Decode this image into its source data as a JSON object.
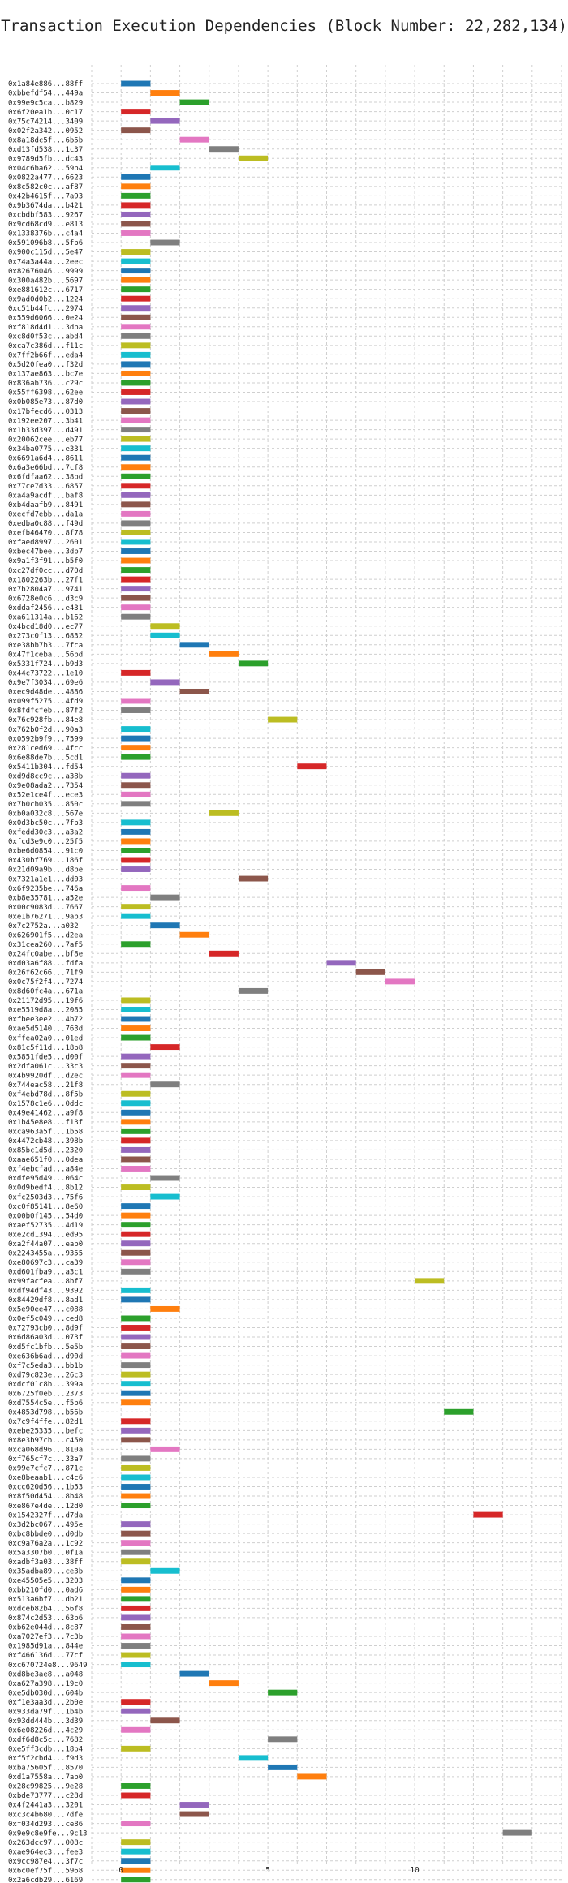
{
  "chart_data": {
    "type": "gantt",
    "title": "Transaction Execution Dependencies (Block Number: 22,282,134)",
    "xlabel": "",
    "ylabel": "",
    "xlim": [
      -1,
      15
    ],
    "xticks": [
      0,
      5,
      10
    ],
    "grid": true,
    "bar_height": 0.6,
    "palette": [
      "#1f77b4",
      "#ff7f0e",
      "#2ca02c",
      "#d62728",
      "#9467bd",
      "#8c564b",
      "#e377c2",
      "#7f7f7f",
      "#bcbd22",
      "#17becf"
    ],
    "transactions": [
      {
        "label": "0x1a84e886...88ff",
        "start": 0,
        "end": 1
      },
      {
        "label": "0xbbefdf54...449a",
        "start": 1,
        "end": 2
      },
      {
        "label": "0x99e9c5ca...b829",
        "start": 2,
        "end": 3
      },
      {
        "label": "0x6f20ea1b...0c17",
        "start": 0,
        "end": 1
      },
      {
        "label": "0x75c74214...3409",
        "start": 1,
        "end": 2
      },
      {
        "label": "0x02f2a342...0952",
        "start": 0,
        "end": 1
      },
      {
        "label": "0x8a18dc5f...6b5b",
        "start": 2,
        "end": 3
      },
      {
        "label": "0xd13fd538...1c37",
        "start": 3,
        "end": 4
      },
      {
        "label": "0x9789d5fb...dc43",
        "start": 4,
        "end": 5
      },
      {
        "label": "0x04c6ba62...59b4",
        "start": 1,
        "end": 2
      },
      {
        "label": "0x0822a477...6623",
        "start": 0,
        "end": 1
      },
      {
        "label": "0x8c582c0c...af87",
        "start": 0,
        "end": 1
      },
      {
        "label": "0x42b4615f...7a93",
        "start": 0,
        "end": 1
      },
      {
        "label": "0x9b3674da...b421",
        "start": 0,
        "end": 1
      },
      {
        "label": "0xcbdbf583...9267",
        "start": 0,
        "end": 1
      },
      {
        "label": "0x9cd68cd9...e813",
        "start": 0,
        "end": 1
      },
      {
        "label": "0x1338376b...c4a4",
        "start": 0,
        "end": 1
      },
      {
        "label": "0x591096b8...5fb6",
        "start": 1,
        "end": 2
      },
      {
        "label": "0x900c115d...5e47",
        "start": 0,
        "end": 1
      },
      {
        "label": "0x74a3a44a...2eec",
        "start": 0,
        "end": 1
      },
      {
        "label": "0x82676046...9999",
        "start": 0,
        "end": 1
      },
      {
        "label": "0x300a482b...5697",
        "start": 0,
        "end": 1
      },
      {
        "label": "0xe881612c...6717",
        "start": 0,
        "end": 1
      },
      {
        "label": "0x9ad0d0b2...1224",
        "start": 0,
        "end": 1
      },
      {
        "label": "0xc51b44fc...2974",
        "start": 0,
        "end": 1
      },
      {
        "label": "0x559d6066...0e24",
        "start": 0,
        "end": 1
      },
      {
        "label": "0xf818d4d1...3dba",
        "start": 0,
        "end": 1
      },
      {
        "label": "0xc8d0f53c...abd4",
        "start": 0,
        "end": 1
      },
      {
        "label": "0xca7c386d...f11c",
        "start": 0,
        "end": 1
      },
      {
        "label": "0x7ff2b66f...eda4",
        "start": 0,
        "end": 1
      },
      {
        "label": "0x5d20fea0...f32d",
        "start": 0,
        "end": 1
      },
      {
        "label": "0x137ae863...bc7e",
        "start": 0,
        "end": 1
      },
      {
        "label": "0x836ab736...c29c",
        "start": 0,
        "end": 1
      },
      {
        "label": "0x55ff6398...62ee",
        "start": 0,
        "end": 1
      },
      {
        "label": "0x0b085e73...87d0",
        "start": 0,
        "end": 1
      },
      {
        "label": "0x17bfecd6...0313",
        "start": 0,
        "end": 1
      },
      {
        "label": "0x192ee207...3b41",
        "start": 0,
        "end": 1
      },
      {
        "label": "0x1b33d397...d491",
        "start": 0,
        "end": 1
      },
      {
        "label": "0x20062cee...eb77",
        "start": 0,
        "end": 1
      },
      {
        "label": "0x34ba0775...e331",
        "start": 0,
        "end": 1
      },
      {
        "label": "0x6691a6d4...8611",
        "start": 0,
        "end": 1
      },
      {
        "label": "0x6a3e66bd...7cf8",
        "start": 0,
        "end": 1
      },
      {
        "label": "0x6fdfaa62...38bd",
        "start": 0,
        "end": 1
      },
      {
        "label": "0x77ce7d33...6857",
        "start": 0,
        "end": 1
      },
      {
        "label": "0xa4a9acdf...baf8",
        "start": 0,
        "end": 1
      },
      {
        "label": "0xb4daafb9...8491",
        "start": 0,
        "end": 1
      },
      {
        "label": "0xecfd7ebb...da1a",
        "start": 0,
        "end": 1
      },
      {
        "label": "0xedba0c88...f49d",
        "start": 0,
        "end": 1
      },
      {
        "label": "0xefb46470...8f78",
        "start": 0,
        "end": 1
      },
      {
        "label": "0xfaed8997...2601",
        "start": 0,
        "end": 1
      },
      {
        "label": "0xbec47bee...3db7",
        "start": 0,
        "end": 1
      },
      {
        "label": "0x9a1f3f91...b5f0",
        "start": 0,
        "end": 1
      },
      {
        "label": "0xc27df0cc...d70d",
        "start": 0,
        "end": 1
      },
      {
        "label": "0x1802263b...27f1",
        "start": 0,
        "end": 1
      },
      {
        "label": "0x7b2804a7...9741",
        "start": 0,
        "end": 1
      },
      {
        "label": "0x6728e0c6...d3c9",
        "start": 0,
        "end": 1
      },
      {
        "label": "0xddaf2456...e431",
        "start": 0,
        "end": 1
      },
      {
        "label": "0xa611314a...b162",
        "start": 0,
        "end": 1
      },
      {
        "label": "0x4bcd18d0...ec77",
        "start": 1,
        "end": 2
      },
      {
        "label": "0x273c0f13...6832",
        "start": 1,
        "end": 2
      },
      {
        "label": "0xe38bb7b3...7fca",
        "start": 2,
        "end": 3
      },
      {
        "label": "0x47f1ceba...56bd",
        "start": 3,
        "end": 4
      },
      {
        "label": "0x5331f724...b9d3",
        "start": 4,
        "end": 5
      },
      {
        "label": "0x44c73722...1e10",
        "start": 0,
        "end": 1
      },
      {
        "label": "0x9e7f3034...69e6",
        "start": 1,
        "end": 2
      },
      {
        "label": "0xec9d48de...4886",
        "start": 2,
        "end": 3
      },
      {
        "label": "0x099f5275...4fd9",
        "start": 0,
        "end": 1
      },
      {
        "label": "0x8fdfcfeb...87f2",
        "start": 0,
        "end": 1
      },
      {
        "label": "0x76c928fb...84e8",
        "start": 5,
        "end": 6
      },
      {
        "label": "0x762b0f2d...90a3",
        "start": 0,
        "end": 1
      },
      {
        "label": "0x0592b9f9...7599",
        "start": 0,
        "end": 1
      },
      {
        "label": "0x281ced69...4fcc",
        "start": 0,
        "end": 1
      },
      {
        "label": "0x6e88de7b...5cd1",
        "start": 0,
        "end": 1
      },
      {
        "label": "0x5411b304...fd54",
        "start": 6,
        "end": 7
      },
      {
        "label": "0xd9d8cc9c...a38b",
        "start": 0,
        "end": 1
      },
      {
        "label": "0x9e08ada2...7354",
        "start": 0,
        "end": 1
      },
      {
        "label": "0x52e1ce4f...ece3",
        "start": 0,
        "end": 1
      },
      {
        "label": "0x7b0cb035...850c",
        "start": 0,
        "end": 1
      },
      {
        "label": "0xb0a032c8...567e",
        "start": 3,
        "end": 4
      },
      {
        "label": "0x0d3bc50c...7fb3",
        "start": 0,
        "end": 1
      },
      {
        "label": "0xfedd30c3...a3a2",
        "start": 0,
        "end": 1
      },
      {
        "label": "0xfcd3e9c0...25f5",
        "start": 0,
        "end": 1
      },
      {
        "label": "0xbe6d0854...91c0",
        "start": 0,
        "end": 1
      },
      {
        "label": "0x430bf769...186f",
        "start": 0,
        "end": 1
      },
      {
        "label": "0x21d09a9b...d8be",
        "start": 0,
        "end": 1
      },
      {
        "label": "0x7321a1e1...dd03",
        "start": 4,
        "end": 5
      },
      {
        "label": "0x6f9235be...746a",
        "start": 0,
        "end": 1
      },
      {
        "label": "0xb8e35781...a52e",
        "start": 1,
        "end": 2
      },
      {
        "label": "0x00c9083d...7667",
        "start": 0,
        "end": 1
      },
      {
        "label": "0xe1b76271...9ab3",
        "start": 0,
        "end": 1
      },
      {
        "label": "0x7c2752a...a032",
        "start": 1,
        "end": 2
      },
      {
        "label": "0x626901f5...d2ea",
        "start": 2,
        "end": 3
      },
      {
        "label": "0x31cea260...7af5",
        "start": 0,
        "end": 1
      },
      {
        "label": "0x24fc0abe...bf8e",
        "start": 3,
        "end": 4
      },
      {
        "label": "0xd03a6f88...fdfa",
        "start": 7,
        "end": 8
      },
      {
        "label": "0x26f62c66...71f9",
        "start": 8,
        "end": 9
      },
      {
        "label": "0x0c75f2f4...7274",
        "start": 9,
        "end": 10
      },
      {
        "label": "0x8d60fc4a...671a",
        "start": 4,
        "end": 5
      },
      {
        "label": "0x21172d95...19f6",
        "start": 0,
        "end": 1
      },
      {
        "label": "0xe5519d8a...2085",
        "start": 0,
        "end": 1
      },
      {
        "label": "0xfbee3ee2...4b72",
        "start": 0,
        "end": 1
      },
      {
        "label": "0xae5d5140...763d",
        "start": 0,
        "end": 1
      },
      {
        "label": "0xffea02a0...01ed",
        "start": 0,
        "end": 1
      },
      {
        "label": "0x81c5f11d...18b8",
        "start": 1,
        "end": 2
      },
      {
        "label": "0x5851fde5...d00f",
        "start": 0,
        "end": 1
      },
      {
        "label": "0x2dfa061c...33c3",
        "start": 0,
        "end": 1
      },
      {
        "label": "0x4b9920df...d2ec",
        "start": 0,
        "end": 1
      },
      {
        "label": "0x744eac58...21f8",
        "start": 1,
        "end": 2
      },
      {
        "label": "0xf4ebd78d...8f5b",
        "start": 0,
        "end": 1
      },
      {
        "label": "0x1578c1e6...0ddc",
        "start": 0,
        "end": 1
      },
      {
        "label": "0x49e41462...a9f8",
        "start": 0,
        "end": 1
      },
      {
        "label": "0x1b45e8e8...f13f",
        "start": 0,
        "end": 1
      },
      {
        "label": "0xca963a5f...1b58",
        "start": 0,
        "end": 1
      },
      {
        "label": "0x4472cb48...398b",
        "start": 0,
        "end": 1
      },
      {
        "label": "0x85bc1d5d...2320",
        "start": 0,
        "end": 1
      },
      {
        "label": "0xaae651f0...0dea",
        "start": 0,
        "end": 1
      },
      {
        "label": "0xf4ebcfad...a84e",
        "start": 0,
        "end": 1
      },
      {
        "label": "0xdfe95d49...064c",
        "start": 1,
        "end": 2
      },
      {
        "label": "0x0d9bedf4...8b12",
        "start": 0,
        "end": 1
      },
      {
        "label": "0xfc2503d3...75f6",
        "start": 1,
        "end": 2
      },
      {
        "label": "0xc0f85141...8e60",
        "start": 0,
        "end": 1
      },
      {
        "label": "0x00b0f145...54d0",
        "start": 0,
        "end": 1
      },
      {
        "label": "0xaef52735...4d19",
        "start": 0,
        "end": 1
      },
      {
        "label": "0xe2cd1394...ed95",
        "start": 0,
        "end": 1
      },
      {
        "label": "0xa2f44a07...eab0",
        "start": 0,
        "end": 1
      },
      {
        "label": "0x2243455a...9355",
        "start": 0,
        "end": 1
      },
      {
        "label": "0xe80697c3...ca39",
        "start": 0,
        "end": 1
      },
      {
        "label": "0xd601fba9...a3c1",
        "start": 0,
        "end": 1
      },
      {
        "label": "0x99facfea...8bf7",
        "start": 10,
        "end": 11
      },
      {
        "label": "0xdf94df43...9392",
        "start": 0,
        "end": 1
      },
      {
        "label": "0x84429df8...8ad1",
        "start": 0,
        "end": 1
      },
      {
        "label": "0x5e90ee47...c088",
        "start": 1,
        "end": 2
      },
      {
        "label": "0x0ef5c049...ced8",
        "start": 0,
        "end": 1
      },
      {
        "label": "0x72793cb0...8d9f",
        "start": 0,
        "end": 1
      },
      {
        "label": "0x6d86a03d...073f",
        "start": 0,
        "end": 1
      },
      {
        "label": "0xd5fc1bfb...5e5b",
        "start": 0,
        "end": 1
      },
      {
        "label": "0xe636b6ad...d90d",
        "start": 0,
        "end": 1
      },
      {
        "label": "0xf7c5eda3...bb1b",
        "start": 0,
        "end": 1
      },
      {
        "label": "0xd79c823e...26c3",
        "start": 0,
        "end": 1
      },
      {
        "label": "0xdcf01c8b...399a",
        "start": 0,
        "end": 1
      },
      {
        "label": "0x6725f0eb...2373",
        "start": 0,
        "end": 1
      },
      {
        "label": "0xd7554c5e...f5b6",
        "start": 0,
        "end": 1
      },
      {
        "label": "0x4853d798...b56b",
        "start": 11,
        "end": 12
      },
      {
        "label": "0x7c9f4ffe...82d1",
        "start": 0,
        "end": 1
      },
      {
        "label": "0xebe25335...befc",
        "start": 0,
        "end": 1
      },
      {
        "label": "0x8e3b97cb...c450",
        "start": 0,
        "end": 1
      },
      {
        "label": "0xca068d96...810a",
        "start": 1,
        "end": 2
      },
      {
        "label": "0xf765cf7c...33a7",
        "start": 0,
        "end": 1
      },
      {
        "label": "0x99e7cfc7...871c",
        "start": 0,
        "end": 1
      },
      {
        "label": "0xe8beaab1...c4c6",
        "start": 0,
        "end": 1
      },
      {
        "label": "0xcc620d56...1b53",
        "start": 0,
        "end": 1
      },
      {
        "label": "0x8f50d454...8b48",
        "start": 0,
        "end": 1
      },
      {
        "label": "0xe867e4de...12d0",
        "start": 0,
        "end": 1
      },
      {
        "label": "0x1542327f...d7da",
        "start": 12,
        "end": 13
      },
      {
        "label": "0x3d2bc067...495e",
        "start": 0,
        "end": 1
      },
      {
        "label": "0xbc8bbde0...d0db",
        "start": 0,
        "end": 1
      },
      {
        "label": "0xc9a76a2a...1c92",
        "start": 0,
        "end": 1
      },
      {
        "label": "0x5a3307b0...0f1a",
        "start": 0,
        "end": 1
      },
      {
        "label": "0xadbf3a03...38ff",
        "start": 0,
        "end": 1
      },
      {
        "label": "0x35adba89...ce3b",
        "start": 1,
        "end": 2
      },
      {
        "label": "0xe45505e5...3203",
        "start": 0,
        "end": 1
      },
      {
        "label": "0xbb210fd0...0ad6",
        "start": 0,
        "end": 1
      },
      {
        "label": "0x513a6bf7...db21",
        "start": 0,
        "end": 1
      },
      {
        "label": "0xdceb82b4...56f8",
        "start": 0,
        "end": 1
      },
      {
        "label": "0x874c2d53...63b6",
        "start": 0,
        "end": 1
      },
      {
        "label": "0xb62e044d...8c87",
        "start": 0,
        "end": 1
      },
      {
        "label": "0xa7027ef3...7c3b",
        "start": 0,
        "end": 1
      },
      {
        "label": "0x1985d91a...844e",
        "start": 0,
        "end": 1
      },
      {
        "label": "0xf466136d...77cf",
        "start": 0,
        "end": 1
      },
      {
        "label": "0xc670724e8...9649",
        "start": 0,
        "end": 1
      },
      {
        "label": "0xd8be3ae8...a048",
        "start": 2,
        "end": 3
      },
      {
        "label": "0xa627a398...19c0",
        "start": 3,
        "end": 4
      },
      {
        "label": "0xe5db030d...604b",
        "start": 5,
        "end": 6
      },
      {
        "label": "0xf1e3aa3d...2b0e",
        "start": 0,
        "end": 1
      },
      {
        "label": "0x933da79f...1b4b",
        "start": 0,
        "end": 1
      },
      {
        "label": "0x93dd444b...3d39",
        "start": 1,
        "end": 2
      },
      {
        "label": "0x6e08226d...4c29",
        "start": 0,
        "end": 1
      },
      {
        "label": "0xdf6d8c5c...7682",
        "start": 5,
        "end": 6
      },
      {
        "label": "0xe5ff3cdb...18b4",
        "start": 0,
        "end": 1
      },
      {
        "label": "0xf5f2cbd4...f9d3",
        "start": 4,
        "end": 5
      },
      {
        "label": "0xba75605f...8570",
        "start": 5,
        "end": 6
      },
      {
        "label": "0xd1a7558a...7ab0",
        "start": 6,
        "end": 7
      },
      {
        "label": "0x28c99825...9e28",
        "start": 0,
        "end": 1
      },
      {
        "label": "0xbde73777...c28d",
        "start": 0,
        "end": 1
      },
      {
        "label": "0x4f2441a3...3201",
        "start": 2,
        "end": 3
      },
      {
        "label": "0xc3c4b680...7dfe",
        "start": 2,
        "end": 3
      },
      {
        "label": "0xf034d293...ce86",
        "start": 0,
        "end": 1
      },
      {
        "label": "0x9e9c8e9fe...9c13",
        "start": 13,
        "end": 14
      },
      {
        "label": "0x263dcc97...008c",
        "start": 0,
        "end": 1
      },
      {
        "label": "0xae964ec3...fee3",
        "start": 0,
        "end": 1
      },
      {
        "label": "0x9cc987e4...3f7c",
        "start": 0,
        "end": 1
      },
      {
        "label": "0x6c0ef75f...5968",
        "start": 0,
        "end": 1
      },
      {
        "label": "0x2a6cdb29...6169",
        "start": 0,
        "end": 1
      }
    ]
  }
}
